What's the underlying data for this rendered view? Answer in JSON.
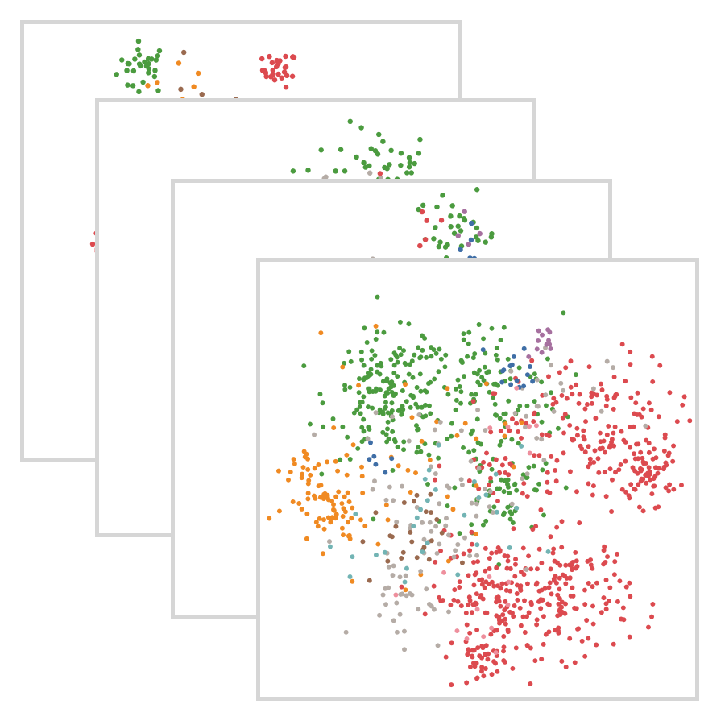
{
  "colors": {
    "red": "#dc4a4f",
    "green": "#4b9b3f",
    "orange": "#f08a22",
    "gray": "#b5aca6",
    "brown": "#9a6a4f",
    "teal": "#72b4b4",
    "blue": "#3f6ea6",
    "purple": "#a6709f",
    "pink": "#ee8f9d",
    "border": "#d6d6d6"
  },
  "chart_data": [
    {
      "type": "scatter",
      "title": "",
      "xlabel": "",
      "ylabel": "",
      "grid": false,
      "legend": "none",
      "clusters": [
        {
          "color": "green",
          "x": -0.45,
          "y": 0.8,
          "spread": 0.06,
          "count": 30
        },
        {
          "color": "red",
          "x": 0.18,
          "y": 0.79,
          "spread": 0.04,
          "count": 28
        },
        {
          "color": "orange",
          "x": -0.3,
          "y": 0.62,
          "spread": 0.12,
          "count": 10
        },
        {
          "color": "brown",
          "x": -0.2,
          "y": 0.62,
          "spread": 0.1,
          "count": 6
        },
        {
          "color": "red",
          "x": -0.65,
          "y": -0.01,
          "spread": 0.03,
          "count": 10
        },
        {
          "color": "gray",
          "x": -0.55,
          "y": 0.3,
          "spread": 0.08,
          "count": 5
        }
      ]
    },
    {
      "type": "scatter",
      "title": "",
      "xlabel": "",
      "ylabel": "",
      "grid": false,
      "legend": "none",
      "clusters": [
        {
          "color": "green",
          "x": 0.3,
          "y": 0.65,
          "spread": 0.12,
          "count": 60
        },
        {
          "color": "blue",
          "x": 0.4,
          "y": 0.55,
          "spread": 0.08,
          "count": 10
        },
        {
          "color": "red",
          "x": 0.18,
          "y": 0.55,
          "spread": 0.08,
          "count": 12
        },
        {
          "color": "green",
          "x": -0.1,
          "y": 0.5,
          "spread": 0.08,
          "count": 30
        },
        {
          "color": "orange",
          "x": -0.05,
          "y": 0.45,
          "spread": 0.15,
          "count": 12
        },
        {
          "color": "gray",
          "x": 0.05,
          "y": 0.55,
          "spread": 0.12,
          "count": 10
        },
        {
          "color": "red",
          "x": -0.28,
          "y": -0.25,
          "spread": 0.05,
          "count": 20
        },
        {
          "color": "gray",
          "x": -0.25,
          "y": -0.3,
          "spread": 0.05,
          "count": 6
        },
        {
          "color": "green",
          "x": -0.3,
          "y": -0.05,
          "spread": 0.1,
          "count": 12
        }
      ]
    },
    {
      "type": "scatter",
      "title": "",
      "xlabel": "",
      "ylabel": "",
      "grid": false,
      "legend": "none",
      "clusters": [
        {
          "color": "green",
          "x": 0.3,
          "y": 0.75,
          "spread": 0.1,
          "count": 40
        },
        {
          "color": "blue",
          "x": 0.35,
          "y": 0.65,
          "spread": 0.07,
          "count": 10
        },
        {
          "color": "purple",
          "x": 0.3,
          "y": 0.75,
          "spread": 0.06,
          "count": 5
        },
        {
          "color": "red",
          "x": 0.2,
          "y": 0.8,
          "spread": 0.05,
          "count": 5
        },
        {
          "color": "gray",
          "x": -0.1,
          "y": 0.55,
          "spread": 0.05,
          "count": 6
        },
        {
          "color": "green",
          "x": -0.38,
          "y": 0.05,
          "spread": 0.06,
          "count": 15
        },
        {
          "color": "red",
          "x": -0.38,
          "y": -0.25,
          "spread": 0.04,
          "count": 14
        },
        {
          "color": "pink",
          "x": -0.32,
          "y": -0.3,
          "spread": 0.04,
          "count": 6
        }
      ]
    },
    {
      "type": "scatter",
      "title": "",
      "xlabel": "",
      "ylabel": "",
      "grid": false,
      "legend": "none",
      "clusters": [
        {
          "color": "green",
          "x": -0.4,
          "y": 0.38,
          "spread": 0.14,
          "count": 180
        },
        {
          "color": "green",
          "x": 0.03,
          "y": 0.4,
          "spread": 0.18,
          "count": 110
        },
        {
          "color": "green",
          "x": 0.12,
          "y": -0.05,
          "spread": 0.12,
          "count": 60
        },
        {
          "color": "red",
          "x": 0.55,
          "y": 0.2,
          "spread": 0.18,
          "count": 170
        },
        {
          "color": "red",
          "x": 0.8,
          "y": 0.03,
          "spread": 0.06,
          "count": 45
        },
        {
          "color": "red",
          "x": 0.07,
          "y": -0.55,
          "spread": 0.14,
          "count": 140
        },
        {
          "color": "red",
          "x": 0.42,
          "y": -0.53,
          "spread": 0.14,
          "count": 140
        },
        {
          "color": "red",
          "x": 0.02,
          "y": -0.85,
          "spread": 0.06,
          "count": 30
        },
        {
          "color": "red",
          "x": 0.12,
          "y": 0.07,
          "spread": 0.12,
          "count": 40
        },
        {
          "color": "orange",
          "x": -0.68,
          "y": -0.15,
          "spread": 0.09,
          "count": 60
        },
        {
          "color": "orange",
          "x": -0.78,
          "y": 0.05,
          "spread": 0.06,
          "count": 20
        },
        {
          "color": "orange",
          "x": -0.35,
          "y": 0.05,
          "spread": 0.25,
          "count": 40
        },
        {
          "color": "gray",
          "x": -0.15,
          "y": -0.05,
          "spread": 0.2,
          "count": 60
        },
        {
          "color": "gray",
          "x": -0.35,
          "y": -0.55,
          "spread": 0.1,
          "count": 30
        },
        {
          "color": "gray",
          "x": 0.2,
          "y": 0.3,
          "spread": 0.2,
          "count": 25
        },
        {
          "color": "brown",
          "x": -0.35,
          "y": -0.28,
          "spread": 0.1,
          "count": 25
        },
        {
          "color": "teal",
          "x": -0.2,
          "y": -0.25,
          "spread": 0.2,
          "count": 30
        },
        {
          "color": "blue",
          "x": 0.18,
          "y": 0.5,
          "spread": 0.06,
          "count": 15
        },
        {
          "color": "blue",
          "x": -0.5,
          "y": 0.1,
          "spread": 0.05,
          "count": 6
        },
        {
          "color": "purple",
          "x": 0.3,
          "y": 0.62,
          "spread": 0.04,
          "count": 12
        },
        {
          "color": "pink",
          "x": 0.0,
          "y": -0.6,
          "spread": 0.2,
          "count": 12
        },
        {
          "color": "pink",
          "x": 0.25,
          "y": 0.25,
          "spread": 0.08,
          "count": 6
        }
      ]
    }
  ]
}
